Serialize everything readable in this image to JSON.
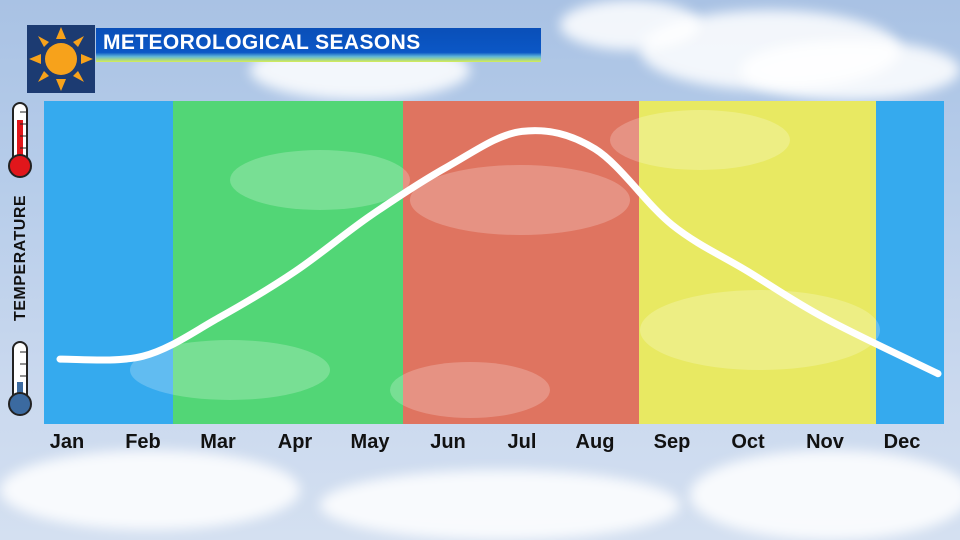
{
  "title": "METEOROLOGICAL SEASONS",
  "chart_data": {
    "type": "line",
    "ylabel": "TEMPERATURE",
    "x": [
      "Jan",
      "Feb",
      "Mar",
      "Apr",
      "May",
      "Jun",
      "Jul",
      "Aug",
      "Sep",
      "Oct",
      "Nov",
      "Dec"
    ],
    "series": [
      {
        "values": [
          0.14,
          0.15,
          0.28,
          0.44,
          0.63,
          0.8,
          0.92,
          0.86,
          0.6,
          0.44,
          0.28,
          0.09
        ]
      }
    ],
    "ylim": [
      0,
      1
    ],
    "seasons": [
      {
        "months": [
          "Dec",
          "Jan",
          "Feb"
        ],
        "color": "#35aaee"
      },
      {
        "months": [
          "Mar",
          "Apr",
          "May"
        ],
        "color": "#52d676"
      },
      {
        "months": [
          "Jun",
          "Jul",
          "Aug"
        ],
        "color": "#df7460"
      },
      {
        "months": [
          "Sep",
          "Oct",
          "Nov"
        ],
        "color": "#e8e962"
      }
    ]
  },
  "icons": {
    "logo": "sun-icon",
    "hot": "thermometer-hot-icon",
    "cold": "thermometer-cold-icon"
  },
  "colors": {
    "title_bar": "#0b57c6",
    "curve": "#ffffff",
    "thermometer_hot": "#e1161b",
    "thermometer_cold": "#3b6aa0"
  }
}
